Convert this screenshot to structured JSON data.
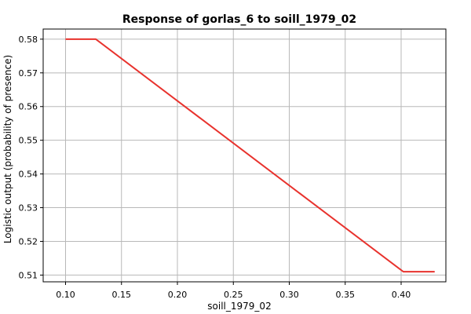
{
  "chart_data": {
    "type": "line",
    "title": "Response of gorlas_6 to soill_1979_02",
    "xlabel": "soill_1979_02",
    "ylabel": "Logistic output (probability of presence)",
    "xlim": [
      0.08,
      0.44
    ],
    "ylim": [
      0.508,
      0.583
    ],
    "xticks": [
      0.1,
      0.15,
      0.2,
      0.25,
      0.3,
      0.35,
      0.4
    ],
    "xtick_labels": [
      "0.10",
      "0.15",
      "0.20",
      "0.25",
      "0.30",
      "0.35",
      "0.40"
    ],
    "yticks": [
      0.51,
      0.52,
      0.53,
      0.54,
      0.55,
      0.56,
      0.57,
      0.58
    ],
    "ytick_labels": [
      "0.51",
      "0.52",
      "0.53",
      "0.54",
      "0.55",
      "0.56",
      "0.57",
      "0.58"
    ],
    "grid": true,
    "series": [
      {
        "color": "#e8322d",
        "x": [
          0.1,
          0.127,
          0.402,
          0.43
        ],
        "y": [
          0.58,
          0.58,
          0.511,
          0.511
        ]
      }
    ]
  }
}
